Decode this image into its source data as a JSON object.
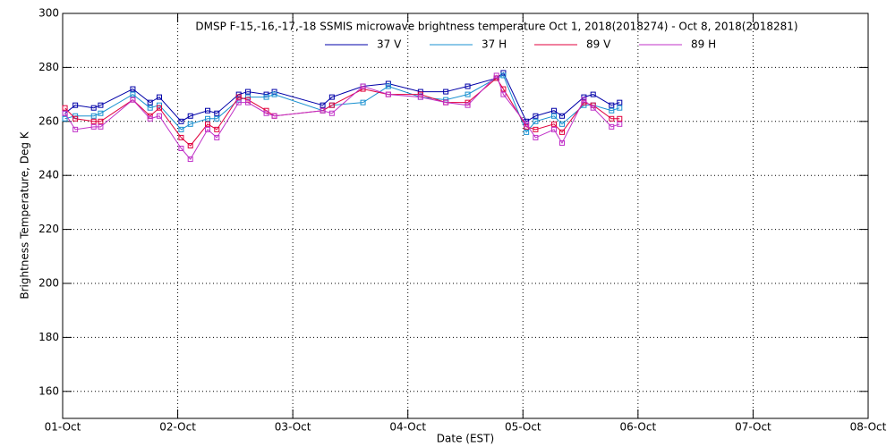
{
  "chart_data": {
    "type": "line",
    "title": "DMSP F-15,-16,-17,-18 SSMIS microwave brightness temperature Oct  1, 2018(2018274) - Oct  8, 2018(2018281)",
    "xlabel": "Date (EST)",
    "ylabel": "Brightness Temperature, Deg K",
    "x": [
      0.02,
      0.11,
      0.27,
      0.33,
      0.61,
      0.76,
      0.84,
      1.03,
      1.11,
      1.26,
      1.34,
      1.53,
      1.61,
      1.77,
      1.84,
      2.26,
      2.34,
      2.61,
      2.83,
      3.11,
      3.33,
      3.52,
      3.77,
      3.83,
      4.03,
      4.11,
      4.27,
      4.34,
      4.53,
      4.61,
      4.77,
      4.84
    ],
    "series": [
      {
        "name": "37 V",
        "color": "#0000a8",
        "values": [
          263,
          266,
          265,
          266,
          272,
          267,
          269,
          260,
          262,
          264,
          263,
          270,
          271,
          270,
          271,
          266,
          269,
          273,
          274,
          271,
          271,
          273,
          276,
          278,
          260,
          262,
          264,
          262,
          269,
          270,
          266,
          267
        ]
      },
      {
        "name": "37 H",
        "color": "#1890d0",
        "values": [
          261,
          262,
          262,
          263,
          270,
          265,
          266,
          257,
          259,
          261,
          261,
          268,
          269,
          269,
          270,
          264,
          266,
          267,
          273,
          269,
          268,
          270,
          276,
          277,
          256,
          260,
          262,
          259,
          266,
          266,
          264,
          265
        ]
      },
      {
        "name": "89 V",
        "color": "#e0003c",
        "values": [
          265,
          261,
          260,
          260,
          268,
          262,
          265,
          254,
          251,
          259,
          257,
          269,
          268,
          264,
          262,
          264,
          266,
          272,
          270,
          270,
          267,
          267,
          276,
          272,
          258,
          257,
          259,
          256,
          267,
          266,
          261,
          261
        ]
      },
      {
        "name": "89 H",
        "color": "#c030c8",
        "values": [
          263,
          257,
          258,
          258,
          268,
          261,
          262,
          250,
          246,
          257,
          254,
          267,
          267,
          263,
          262,
          264,
          263,
          273,
          270,
          269,
          267,
          266,
          277,
          270,
          259,
          254,
          257,
          252,
          268,
          265,
          258,
          259
        ]
      }
    ],
    "xlim": [
      0,
      7
    ],
    "xticks": [
      {
        "value": 0,
        "label": "01-Oct"
      },
      {
        "value": 1,
        "label": "02-Oct"
      },
      {
        "value": 2,
        "label": "03-Oct"
      },
      {
        "value": 3,
        "label": "04-Oct"
      },
      {
        "value": 4,
        "label": "05-Oct"
      },
      {
        "value": 5,
        "label": "06-Oct"
      },
      {
        "value": 6,
        "label": "07-Oct"
      },
      {
        "value": 7,
        "label": "08-Oct"
      }
    ],
    "ylim": [
      150,
      300
    ],
    "yticks": [
      160,
      180,
      200,
      220,
      240,
      260,
      280,
      300
    ],
    "grid": true,
    "markers": "square"
  }
}
